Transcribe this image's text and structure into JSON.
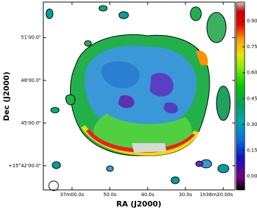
{
  "chart_data": {
    "type": "image",
    "xlabel": "RA (J2000)",
    "ylabel": "Dec (J2000)",
    "xlim": [
      67.6,
      16.9
    ],
    "xticks": [
      {
        "value": 60,
        "label": "37m00.0s"
      },
      {
        "value": 50,
        "label": "50.0s"
      },
      {
        "value": 40,
        "label": "40.0s"
      },
      {
        "value": 30,
        "label": "30.0s"
      },
      {
        "value": 20,
        "label": "1h36m20.00s"
      }
    ],
    "ylim": [
      40.3,
      53.5
    ],
    "yticks": [
      {
        "value": 51,
        "label": "51'00.0\""
      },
      {
        "value": 48,
        "label": "48'00.0\""
      },
      {
        "value": 45,
        "label": "45'00.0\""
      },
      {
        "value": 42,
        "label": "+15°42'00.0\""
      }
    ],
    "clim": [
      -0.08,
      1.01
    ],
    "cticks": [
      {
        "value": 0.9,
        "label": "0.90"
      },
      0.75,
      {
        "value": 0.6,
        "label": "0.60"
      },
      0.45,
      {
        "value": 0.3,
        "label": "0.30"
      },
      0.15,
      {
        "value": 0.0,
        "label": "0.00"
      }
    ]
  }
}
